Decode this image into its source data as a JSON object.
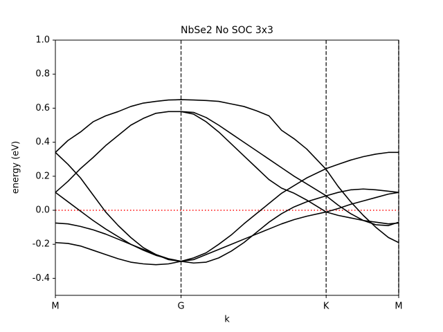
{
  "chart_data": {
    "type": "line",
    "title": "NbSe2 No SOC 3x3",
    "x_label": "k",
    "y_label": "energy (eV)",
    "xlim": [
      0,
      2.732
    ],
    "ylim": [
      -0.5,
      1.0
    ],
    "xticks": [
      {
        "value": 0,
        "label": "M"
      },
      {
        "value": 1,
        "label": "G"
      },
      {
        "value": 2.1547,
        "label": "K"
      },
      {
        "value": 2.732,
        "label": "M"
      }
    ],
    "yticks": [
      -0.4,
      -0.2,
      {
        "value": 0,
        "label": "0.0"
      },
      0.2,
      0.4,
      0.6,
      0.8,
      {
        "value": 1,
        "label": "1.0"
      }
    ],
    "vlines": [
      1,
      2.1547,
      2.732
    ],
    "vline_color": "#333333",
    "hline": 0,
    "hline_color": "#ff0000",
    "x": [
      0,
      0.1,
      0.2,
      0.3,
      0.4,
      0.5,
      0.6,
      0.7,
      0.8,
      0.9,
      1.0,
      1.1,
      1.2,
      1.3,
      1.4,
      1.5,
      1.6,
      1.7,
      1.8,
      1.9,
      2.0,
      2.1547,
      2.25,
      2.35,
      2.45,
      2.55,
      2.65,
      2.732
    ],
    "series": [
      {
        "color": "#000000",
        "values": [
          0.34,
          0.41,
          0.46,
          0.52,
          0.555,
          0.58,
          0.61,
          0.63,
          0.64,
          0.648,
          0.65,
          0.648,
          0.645,
          0.64,
          0.625,
          0.61,
          0.585,
          0.555,
          0.47,
          0.42,
          0.36,
          0.24,
          0.14,
          0.05,
          -0.03,
          -0.1,
          -0.16,
          -0.19
        ]
      },
      {
        "color": "#000000",
        "values": [
          0.34,
          0.27,
          0.19,
          0.09,
          -0.01,
          -0.09,
          -0.16,
          -0.22,
          -0.26,
          -0.29,
          -0.3,
          -0.28,
          -0.25,
          -0.2,
          -0.145,
          -0.08,
          -0.02,
          0.04,
          0.1,
          0.145,
          0.19,
          0.245,
          0.27,
          0.295,
          0.315,
          0.33,
          0.34,
          0.34
        ]
      },
      {
        "color": "#000000",
        "values": [
          0.105,
          0.17,
          0.245,
          0.31,
          0.38,
          0.44,
          0.5,
          0.54,
          0.57,
          0.58,
          0.58,
          0.575,
          0.545,
          0.5,
          0.45,
          0.4,
          0.35,
          0.3,
          0.25,
          0.2,
          0.155,
          0.085,
          0.03,
          -0.02,
          -0.06,
          -0.085,
          -0.09,
          -0.07
        ]
      },
      {
        "color": "#000000",
        "values": [
          null,
          null,
          null,
          null,
          null,
          null,
          null,
          null,
          null,
          null,
          0.58,
          0.565,
          0.52,
          0.46,
          0.39,
          0.32,
          0.25,
          0.18,
          0.13,
          0.1,
          0.06,
          -0.01,
          -0.03,
          -0.045,
          -0.06,
          -0.07,
          -0.08,
          -0.075
        ]
      },
      {
        "color": "#000000",
        "values": [
          0.105,
          0.05,
          -0.005,
          -0.06,
          -0.11,
          -0.155,
          -0.2,
          -0.235,
          -0.265,
          -0.285,
          -0.3,
          -0.29,
          -0.26,
          -0.23,
          -0.2,
          -0.17,
          -0.14,
          -0.11,
          -0.08,
          -0.055,
          -0.035,
          -0.01,
          0.01,
          0.035,
          0.055,
          0.075,
          0.095,
          0.105
        ]
      },
      {
        "color": "#000000",
        "values": [
          -0.075,
          -0.08,
          -0.095,
          -0.115,
          -0.14,
          -0.17,
          -0.2,
          -0.23,
          -0.26,
          -0.285,
          -0.3,
          -0.31,
          -0.305,
          -0.28,
          -0.24,
          -0.19,
          -0.13,
          -0.07,
          -0.02,
          0.02,
          0.05,
          0.085,
          0.105,
          0.12,
          0.125,
          0.12,
          0.112,
          0.105
        ]
      },
      {
        "color": "#000000",
        "values": [
          -0.19,
          -0.195,
          -0.21,
          -0.235,
          -0.26,
          -0.285,
          -0.305,
          -0.315,
          -0.32,
          -0.315,
          -0.3,
          null,
          null,
          null,
          null,
          null,
          null,
          null,
          null,
          null,
          null,
          null,
          null,
          null,
          null,
          null,
          null,
          null
        ]
      }
    ]
  }
}
